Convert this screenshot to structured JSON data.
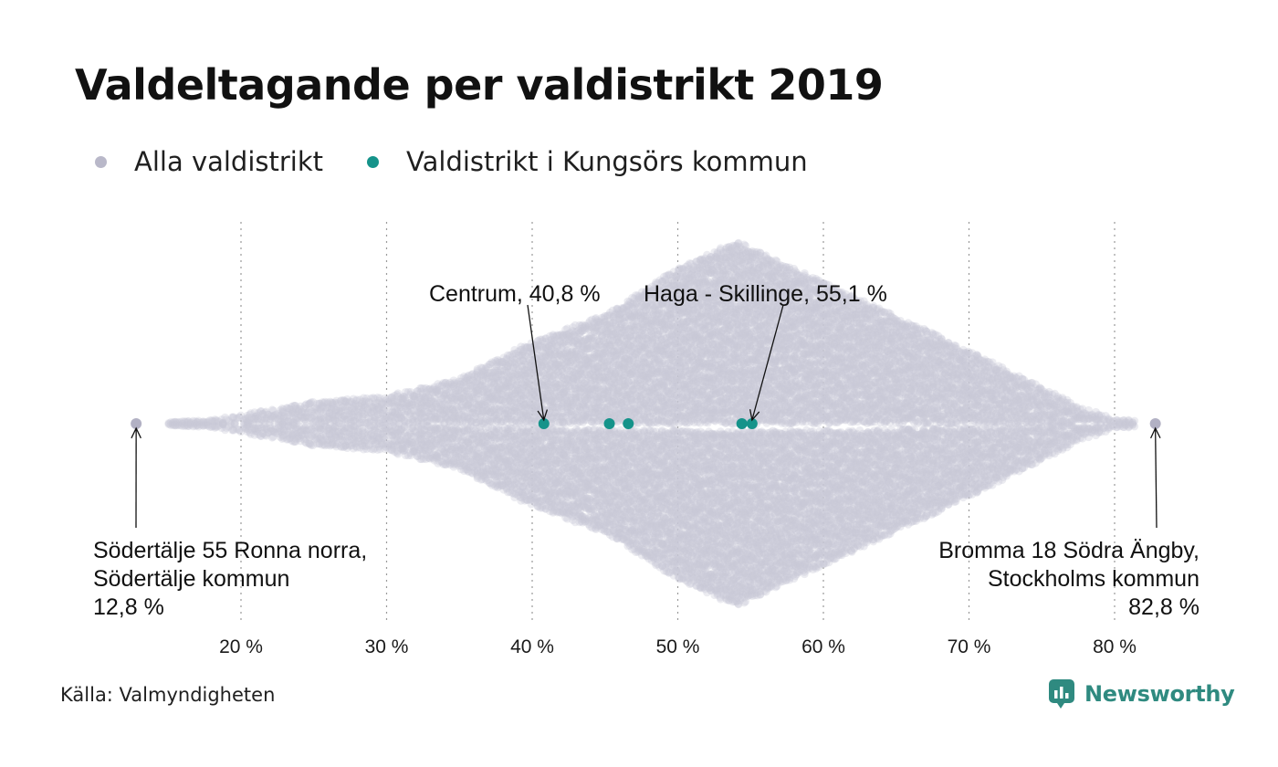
{
  "title": "Valdeltagande per valdistrikt 2019",
  "legend": [
    {
      "label": "Alla valdistrikt",
      "color": "#b9b8c9"
    },
    {
      "label": "Valdistrikt i Kungsörs kommun",
      "color": "#15938a"
    }
  ],
  "source": "Källa: Valmyndigheten",
  "brand": "Newsworthy",
  "colors": {
    "background_dots": "#c9c8d6",
    "highlight": "#15938a",
    "extreme": "#b2b1c4",
    "grid": "#9a9a9a"
  },
  "chart_data": {
    "type": "scatter",
    "xlabel": "",
    "ylabel": "",
    "xlim": [
      12,
      84
    ],
    "x_ticks": [
      20,
      30,
      40,
      50,
      60,
      70,
      80
    ],
    "x_tick_labels": [
      "20 %",
      "30 %",
      "40 %",
      "50 %",
      "60 %",
      "70 %",
      "80 %"
    ],
    "grid": "vertical dotted",
    "distribution": {
      "description_level": "density of all districts by turnout (beeswarm width, relative)",
      "x": [
        15,
        18,
        20,
        25,
        30,
        35,
        40,
        45,
        50,
        54,
        58,
        62,
        66,
        70,
        75,
        78,
        80,
        82
      ],
      "relative_density": [
        0.01,
        0.02,
        0.05,
        0.12,
        0.15,
        0.25,
        0.45,
        0.6,
        0.85,
        1.0,
        0.85,
        0.7,
        0.55,
        0.4,
        0.2,
        0.08,
        0.03,
        0.01
      ]
    },
    "highlight_series": {
      "name": "Valdistrikt i Kungsörs kommun",
      "values": [
        40.8,
        45.3,
        46.6,
        54.4,
        55.1
      ]
    },
    "extremes": [
      12.8,
      82.8
    ],
    "annotations": [
      {
        "id": "centrum",
        "x": 40.8,
        "lines": [
          "Centrum, 40,8 %"
        ]
      },
      {
        "id": "haga",
        "x": 55.1,
        "lines": [
          "Haga - Skillinge, 55,1 %"
        ]
      },
      {
        "id": "min",
        "x": 12.8,
        "lines": [
          "Södertälje 55 Ronna norra,",
          "Södertälje kommun",
          "12,8 %"
        ]
      },
      {
        "id": "max",
        "x": 82.8,
        "lines": [
          "Bromma 18 Södra Ängby,",
          "Stockholms kommun",
          "82,8 %"
        ]
      }
    ]
  }
}
